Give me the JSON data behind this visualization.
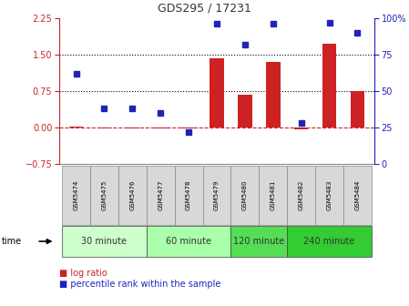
{
  "title": "GDS295 / 17231",
  "samples": [
    "GSM5474",
    "GSM5475",
    "GSM5476",
    "GSM5477",
    "GSM5478",
    "GSM5479",
    "GSM5480",
    "GSM5481",
    "GSM5482",
    "GSM5483",
    "GSM5484"
  ],
  "log_ratio": [
    0.02,
    -0.02,
    -0.02,
    -0.02,
    -0.02,
    1.43,
    0.68,
    1.35,
    -0.04,
    1.72,
    0.75
  ],
  "percentile": [
    62,
    38,
    38,
    35,
    22,
    96,
    82,
    96,
    28,
    97,
    90
  ],
  "left_ylim": [
    -0.75,
    2.25
  ],
  "right_ylim": [
    0,
    100
  ],
  "left_yticks": [
    -0.75,
    0,
    0.75,
    1.5,
    2.25
  ],
  "right_yticks": [
    0,
    25,
    50,
    75,
    100
  ],
  "right_yticklabels": [
    "0",
    "25",
    "50",
    "75",
    "100%"
  ],
  "hlines": [
    0.75,
    1.5
  ],
  "bar_color": "#cc2222",
  "dot_color": "#2222bb",
  "dashed_line_color": "#cc2222",
  "groups": [
    {
      "label": "30 minute",
      "start": 0,
      "end": 2,
      "color": "#ccffcc"
    },
    {
      "label": "60 minute",
      "start": 3,
      "end": 5,
      "color": "#aaffaa"
    },
    {
      "label": "120 minute",
      "start": 6,
      "end": 7,
      "color": "#55dd55"
    },
    {
      "label": "240 minute",
      "start": 8,
      "end": 10,
      "color": "#33cc33"
    }
  ],
  "time_label": "time",
  "legend_items": [
    {
      "label": "log ratio",
      "color": "#cc2222"
    },
    {
      "label": "percentile rank within the sample",
      "color": "#2222bb"
    }
  ],
  "bg_color": "#ffffff"
}
